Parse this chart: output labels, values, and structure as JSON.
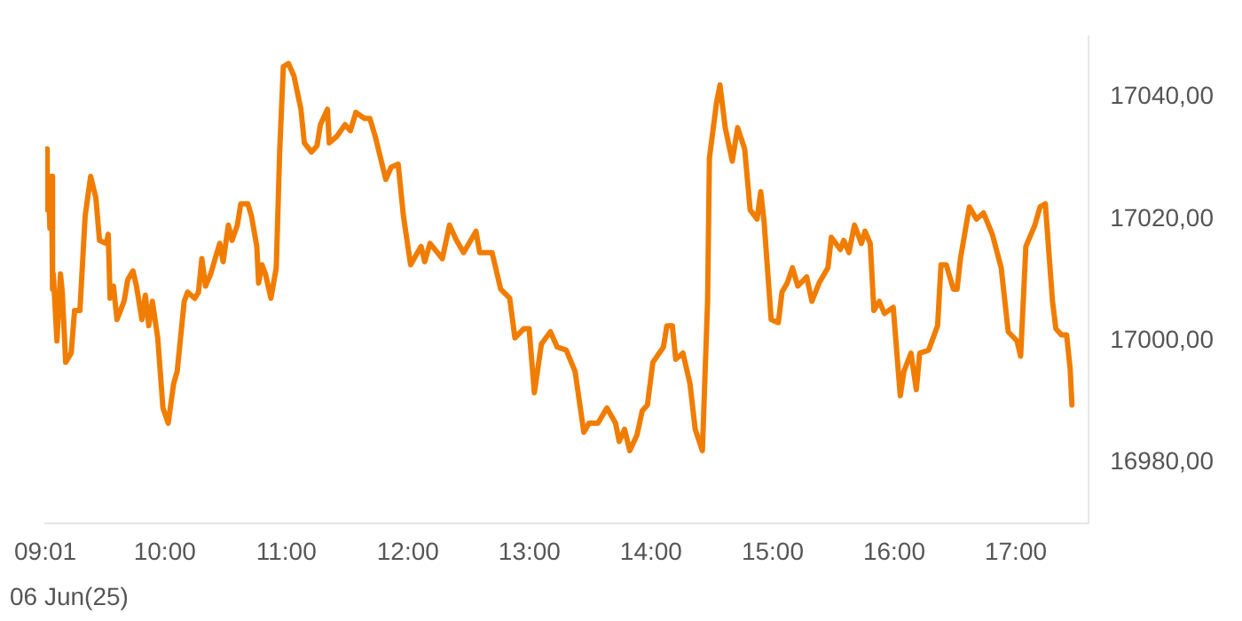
{
  "chart_data": {
    "type": "line",
    "color": "#f07d00",
    "marker": "none",
    "grid": false,
    "legend": false,
    "xlim": [
      9.017,
      17.6
    ],
    "ylim": [
      16970,
      17050
    ],
    "xticks": [
      {
        "value": 9.017,
        "label": "09:01"
      },
      {
        "value": 10,
        "label": "10:00"
      },
      {
        "value": 11,
        "label": "11:00"
      },
      {
        "value": 12,
        "label": "12:00"
      },
      {
        "value": 13,
        "label": "13:00"
      },
      {
        "value": 14,
        "label": "14:00"
      },
      {
        "value": 15,
        "label": "15:00"
      },
      {
        "value": 16,
        "label": "16:00"
      },
      {
        "value": 17,
        "label": "17:00"
      }
    ],
    "yticks": [
      {
        "value": 16980,
        "label": "16980,00"
      },
      {
        "value": 17000,
        "label": "17000,00"
      },
      {
        "value": 17020,
        "label": "17020,00"
      },
      {
        "value": 17040,
        "label": "17040,00"
      }
    ],
    "annotations": [
      "06 Jun(25)"
    ],
    "x": [
      9.017,
      9.025,
      9.033,
      9.042,
      9.055,
      9.068,
      9.077,
      9.083,
      9.113,
      9.142,
      9.157,
      9.185,
      9.23,
      9.258,
      9.302,
      9.345,
      9.39,
      9.433,
      9.463,
      9.52,
      9.535,
      9.55,
      9.578,
      9.607,
      9.665,
      9.695,
      9.738,
      9.767,
      9.812,
      9.84,
      9.868,
      9.898,
      9.942,
      9.985,
      10.028,
      10.073,
      10.102,
      10.16,
      10.188,
      10.247,
      10.277,
      10.305,
      10.335,
      10.378,
      10.407,
      10.452,
      10.48,
      10.523,
      10.553,
      10.597,
      10.625,
      10.683,
      10.713,
      10.757,
      10.772,
      10.8,
      10.828,
      10.873,
      10.917,
      10.945,
      10.975,
      11.018,
      11.062,
      11.12,
      11.148,
      11.207,
      11.252,
      11.28,
      11.338,
      11.353,
      11.412,
      11.483,
      11.527,
      11.572,
      11.643,
      11.687,
      11.732,
      11.818,
      11.862,
      11.92,
      11.963,
      12.022,
      12.108,
      12.138,
      12.182,
      12.283,
      12.342,
      12.4,
      12.458,
      12.56,
      12.59,
      12.692,
      12.763,
      12.837,
      12.88,
      12.953,
      12.997,
      13.04,
      13.098,
      13.172,
      13.228,
      13.302,
      13.375,
      13.447,
      13.49,
      13.563,
      13.637,
      13.708,
      13.738,
      13.782,
      13.825,
      13.883,
      13.927,
      13.97,
      14.015,
      14.102,
      14.13,
      14.175,
      14.203,
      14.262,
      14.32,
      14.363,
      14.422,
      14.465,
      14.48,
      14.538,
      14.567,
      14.61,
      14.668,
      14.712,
      14.77,
      14.815,
      14.872,
      14.902,
      14.93,
      14.988,
      15.047,
      15.077,
      15.12,
      15.163,
      15.207,
      15.28,
      15.323,
      15.382,
      15.455,
      15.483,
      15.557,
      15.585,
      15.628,
      15.673,
      15.73,
      15.76,
      15.803,
      15.833,
      15.877,
      15.92,
      15.992,
      16.05,
      16.08,
      16.138,
      16.182,
      16.21,
      16.283,
      16.357,
      16.385,
      16.428,
      16.487,
      16.517,
      16.545,
      16.618,
      16.677,
      16.735,
      16.807,
      16.88,
      16.938,
      17.01,
      17.04,
      17.083,
      17.157,
      17.2,
      17.243,
      17.302,
      17.33,
      17.375,
      17.418,
      17.447,
      17.462
    ],
    "values": [
      17028,
      17031.5,
      17021.5,
      17027,
      17018.5,
      17027,
      17008.5,
      17011,
      17000,
      17011,
      17008,
      16996.5,
      16998,
      17005,
      17005,
      17020.5,
      17027,
      17023.5,
      17016.5,
      17016,
      17017.5,
      17007,
      17009,
      17003.5,
      17006.5,
      17010,
      17011.5,
      17009,
      17003.5,
      17007.5,
      17002.5,
      17006.5,
      17000.5,
      16989,
      16986.5,
      16993,
      16995,
      17006.5,
      17008,
      17007,
      17008,
      17013.5,
      17009,
      17011,
      17013,
      17016,
      17013,
      17019,
      17016.5,
      17019,
      17022.5,
      17022.5,
      17020.5,
      17015.5,
      17009.5,
      17012.5,
      17011,
      17007,
      17012,
      17031,
      17045,
      17045.5,
      17043.5,
      17038,
      17032.5,
      17031,
      17032,
      17035.5,
      17038,
      17032.5,
      17033.5,
      17035.5,
      17034.5,
      17037.5,
      17036.5,
      17036.5,
      17033.5,
      17026.5,
      17028.5,
      17029,
      17020.5,
      17012.5,
      17015.5,
      17013,
      17016,
      17013.5,
      17019,
      17016.5,
      17014.5,
      17018,
      17014.5,
      17014.5,
      17008.5,
      17007,
      17000.5,
      17002,
      17002,
      16991.5,
      16999.5,
      17001.5,
      16999,
      16998.5,
      16995,
      16985,
      16986.5,
      16986.5,
      16989,
      16986.5,
      16983.5,
      16985.5,
      16982,
      16984.5,
      16988.5,
      16989.5,
      16996.5,
      16999,
      17002.5,
      17002.5,
      16997,
      16998,
      16993,
      16985.5,
      16982,
      17006.5,
      17030,
      17039,
      17042,
      17035,
      17029.5,
      17035,
      17031.5,
      17021.5,
      17020,
      17024.5,
      17019.5,
      17003.5,
      17003,
      17008,
      17009.5,
      17012,
      17009,
      17010.5,
      17006.5,
      17009.5,
      17012,
      17017,
      17015,
      17016.5,
      17014.5,
      17019,
      17016,
      17018,
      17016,
      17005,
      17006.5,
      17004.5,
      17005.5,
      16991,
      16995,
      16998,
      16992,
      16998,
      16998.5,
      17002.5,
      17012.5,
      17012.5,
      17008.5,
      17008.5,
      17013.5,
      17022,
      17020,
      17021,
      17017.5,
      17012,
      17001.5,
      17000,
      16997.5,
      17015.5,
      17019,
      17022,
      17022.5,
      17006.5,
      17002,
      17001,
      17001,
      16995.5,
      16989.5
    ]
  }
}
